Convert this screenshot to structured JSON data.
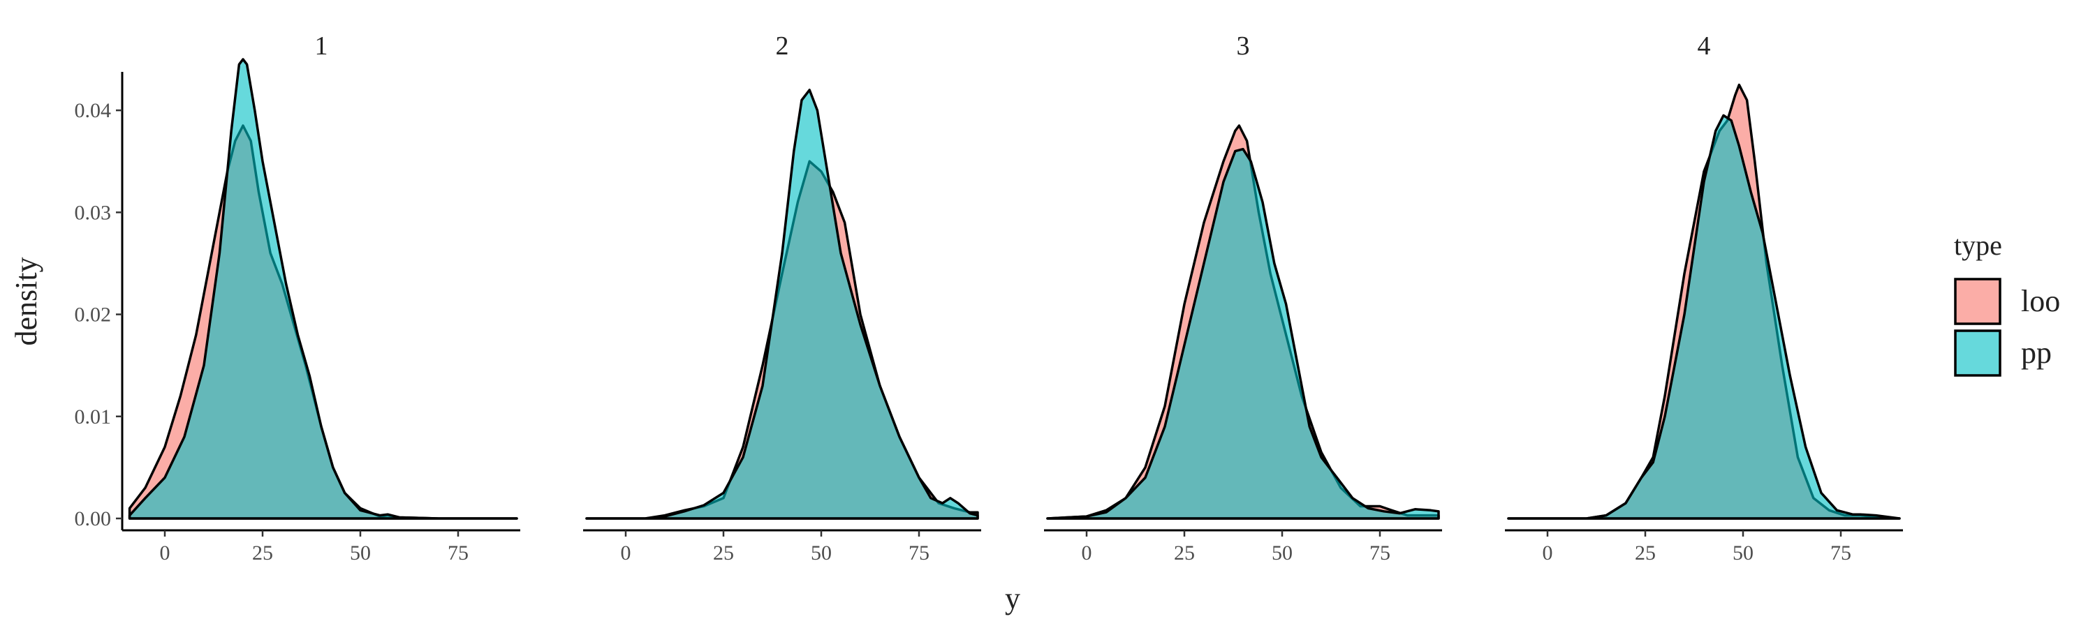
{
  "chart_data": {
    "type": "area",
    "subtype": "faceted density",
    "xlabel": "y",
    "ylabel": "density",
    "xlim": [
      -10,
      90
    ],
    "ylim": [
      0,
      0.045
    ],
    "x_ticks": [
      0,
      25,
      50,
      75
    ],
    "y_ticks": [
      0.0,
      0.01,
      0.02,
      0.03,
      0.04
    ],
    "y_tick_labels": [
      "0.00",
      "0.01",
      "0.02",
      "0.03",
      "0.04"
    ],
    "legend": {
      "title": "type",
      "position": "right",
      "entries": [
        {
          "label": "loo",
          "color": "#F8766D"
        },
        {
          "label": "pp",
          "color": "#00BFC4"
        }
      ]
    },
    "panels": [
      {
        "label": "1",
        "series": [
          {
            "name": "loo",
            "points": [
              [
                -9,
                0.001
              ],
              [
                -5,
                0.003
              ],
              [
                0,
                0.007
              ],
              [
                4,
                0.012
              ],
              [
                8,
                0.018
              ],
              [
                12,
                0.026
              ],
              [
                16,
                0.034
              ],
              [
                18,
                0.037
              ],
              [
                20,
                0.0385
              ],
              [
                22,
                0.037
              ],
              [
                24,
                0.032
              ],
              [
                27,
                0.026
              ],
              [
                30,
                0.023
              ],
              [
                33,
                0.019
              ],
              [
                36,
                0.015
              ],
              [
                38,
                0.012
              ],
              [
                40,
                0.009
              ],
              [
                43,
                0.005
              ],
              [
                46,
                0.0025
              ],
              [
                50,
                0.001
              ],
              [
                55,
                0.0002
              ],
              [
                57,
                0.0003
              ],
              [
                60,
                0.0001
              ],
              [
                70,
                0
              ],
              [
                90,
                0
              ]
            ]
          },
          {
            "name": "pp",
            "points": [
              [
                -9,
                0.0003
              ],
              [
                -5,
                0.002
              ],
              [
                0,
                0.004
              ],
              [
                5,
                0.008
              ],
              [
                10,
                0.015
              ],
              [
                14,
                0.026
              ],
              [
                17,
                0.038
              ],
              [
                19,
                0.0445
              ],
              [
                20,
                0.045
              ],
              [
                21,
                0.0445
              ],
              [
                23,
                0.04
              ],
              [
                25,
                0.035
              ],
              [
                28,
                0.029
              ],
              [
                31,
                0.023
              ],
              [
                34,
                0.018
              ],
              [
                37,
                0.014
              ],
              [
                40,
                0.009
              ],
              [
                43,
                0.005
              ],
              [
                46,
                0.0025
              ],
              [
                50,
                0.0008
              ],
              [
                55,
                0.0003
              ],
              [
                57,
                0.0004
              ],
              [
                60,
                0.0001
              ],
              [
                70,
                0
              ],
              [
                90,
                0
              ]
            ]
          }
        ]
      },
      {
        "label": "2",
        "series": [
          {
            "name": "loo",
            "points": [
              [
                -10,
                0
              ],
              [
                0,
                0
              ],
              [
                5,
                0
              ],
              [
                10,
                0.0003
              ],
              [
                15,
                0.0008
              ],
              [
                20,
                0.0012
              ],
              [
                25,
                0.002
              ],
              [
                30,
                0.007
              ],
              [
                35,
                0.015
              ],
              [
                40,
                0.024
              ],
              [
                44,
                0.031
              ],
              [
                47,
                0.035
              ],
              [
                50,
                0.034
              ],
              [
                53,
                0.032
              ],
              [
                56,
                0.029
              ],
              [
                60,
                0.02
              ],
              [
                65,
                0.013
              ],
              [
                70,
                0.008
              ],
              [
                75,
                0.004
              ],
              [
                80,
                0.0015
              ],
              [
                84,
                0.001
              ],
              [
                88,
                0.0006
              ],
              [
                90,
                0.0006
              ]
            ]
          },
          {
            "name": "pp",
            "points": [
              [
                -10,
                0
              ],
              [
                0,
                0
              ],
              [
                5,
                0
              ],
              [
                10,
                0.0002
              ],
              [
                15,
                0.0007
              ],
              [
                20,
                0.0013
              ],
              [
                25,
                0.0025
              ],
              [
                30,
                0.006
              ],
              [
                35,
                0.013
              ],
              [
                40,
                0.026
              ],
              [
                43,
                0.036
              ],
              [
                45,
                0.041
              ],
              [
                47,
                0.042
              ],
              [
                49,
                0.04
              ],
              [
                52,
                0.033
              ],
              [
                55,
                0.026
              ],
              [
                60,
                0.019
              ],
              [
                65,
                0.013
              ],
              [
                70,
                0.008
              ],
              [
                75,
                0.004
              ],
              [
                78,
                0.002
              ],
              [
                81,
                0.0015
              ],
              [
                83,
                0.002
              ],
              [
                85,
                0.0015
              ],
              [
                88,
                0.0005
              ],
              [
                90,
                0.0003
              ]
            ]
          }
        ]
      },
      {
        "label": "3",
        "series": [
          {
            "name": "loo",
            "points": [
              [
                -10,
                0
              ],
              [
                0,
                0.0002
              ],
              [
                5,
                0.0008
              ],
              [
                10,
                0.002
              ],
              [
                15,
                0.005
              ],
              [
                20,
                0.011
              ],
              [
                25,
                0.021
              ],
              [
                30,
                0.029
              ],
              [
                35,
                0.035
              ],
              [
                38,
                0.038
              ],
              [
                39,
                0.0385
              ],
              [
                41,
                0.037
              ],
              [
                44,
                0.03
              ],
              [
                47,
                0.024
              ],
              [
                51,
                0.018
              ],
              [
                55,
                0.012
              ],
              [
                60,
                0.0065
              ],
              [
                65,
                0.003
              ],
              [
                70,
                0.0012
              ],
              [
                75,
                0.0012
              ],
              [
                78,
                0.0008
              ],
              [
                82,
                0.0003
              ],
              [
                85,
                0.0003
              ],
              [
                90,
                0.0003
              ]
            ]
          },
          {
            "name": "pp",
            "points": [
              [
                -10,
                0
              ],
              [
                0,
                0.0002
              ],
              [
                5,
                0.0006
              ],
              [
                10,
                0.002
              ],
              [
                15,
                0.004
              ],
              [
                20,
                0.009
              ],
              [
                25,
                0.017
              ],
              [
                30,
                0.025
              ],
              [
                35,
                0.033
              ],
              [
                38,
                0.036
              ],
              [
                40,
                0.0362
              ],
              [
                42,
                0.035
              ],
              [
                45,
                0.031
              ],
              [
                48,
                0.025
              ],
              [
                51,
                0.021
              ],
              [
                54,
                0.015
              ],
              [
                57,
                0.009
              ],
              [
                60,
                0.006
              ],
              [
                64,
                0.004
              ],
              [
                68,
                0.002
              ],
              [
                72,
                0.001
              ],
              [
                76,
                0.0007
              ],
              [
                80,
                0.0005
              ],
              [
                84,
                0.0009
              ],
              [
                88,
                0.0008
              ],
              [
                90,
                0.0007
              ]
            ]
          }
        ]
      },
      {
        "label": "4",
        "series": [
          {
            "name": "loo",
            "points": [
              [
                -10,
                0
              ],
              [
                0,
                0
              ],
              [
                10,
                0
              ],
              [
                15,
                0.0003
              ],
              [
                20,
                0.0015
              ],
              [
                24,
                0.004
              ],
              [
                27,
                0.006
              ],
              [
                30,
                0.012
              ],
              [
                35,
                0.024
              ],
              [
                40,
                0.034
              ],
              [
                44,
                0.038
              ],
              [
                46,
                0.039
              ],
              [
                48,
                0.0415
              ],
              [
                49,
                0.0425
              ],
              [
                51,
                0.041
              ],
              [
                53,
                0.035
              ],
              [
                56,
                0.025
              ],
              [
                60,
                0.015
              ],
              [
                64,
                0.006
              ],
              [
                68,
                0.002
              ],
              [
                72,
                0.0008
              ],
              [
                76,
                0.0003
              ],
              [
                80,
                0.0003
              ],
              [
                85,
                0.0001
              ],
              [
                90,
                0
              ]
            ]
          },
          {
            "name": "pp",
            "points": [
              [
                -10,
                0
              ],
              [
                0,
                0
              ],
              [
                10,
                0
              ],
              [
                15,
                0.0003
              ],
              [
                20,
                0.0015
              ],
              [
                24,
                0.004
              ],
              [
                27,
                0.0055
              ],
              [
                30,
                0.01
              ],
              [
                35,
                0.02
              ],
              [
                40,
                0.033
              ],
              [
                43,
                0.038
              ],
              [
                45,
                0.0395
              ],
              [
                47,
                0.039
              ],
              [
                49,
                0.0365
              ],
              [
                52,
                0.032
              ],
              [
                55,
                0.028
              ],
              [
                58,
                0.022
              ],
              [
                62,
                0.014
              ],
              [
                66,
                0.007
              ],
              [
                70,
                0.0025
              ],
              [
                74,
                0.0008
              ],
              [
                78,
                0.0004
              ],
              [
                80,
                0.0004
              ],
              [
                84,
                0.0003
              ],
              [
                90,
                0
              ]
            ]
          }
        ]
      }
    ]
  }
}
